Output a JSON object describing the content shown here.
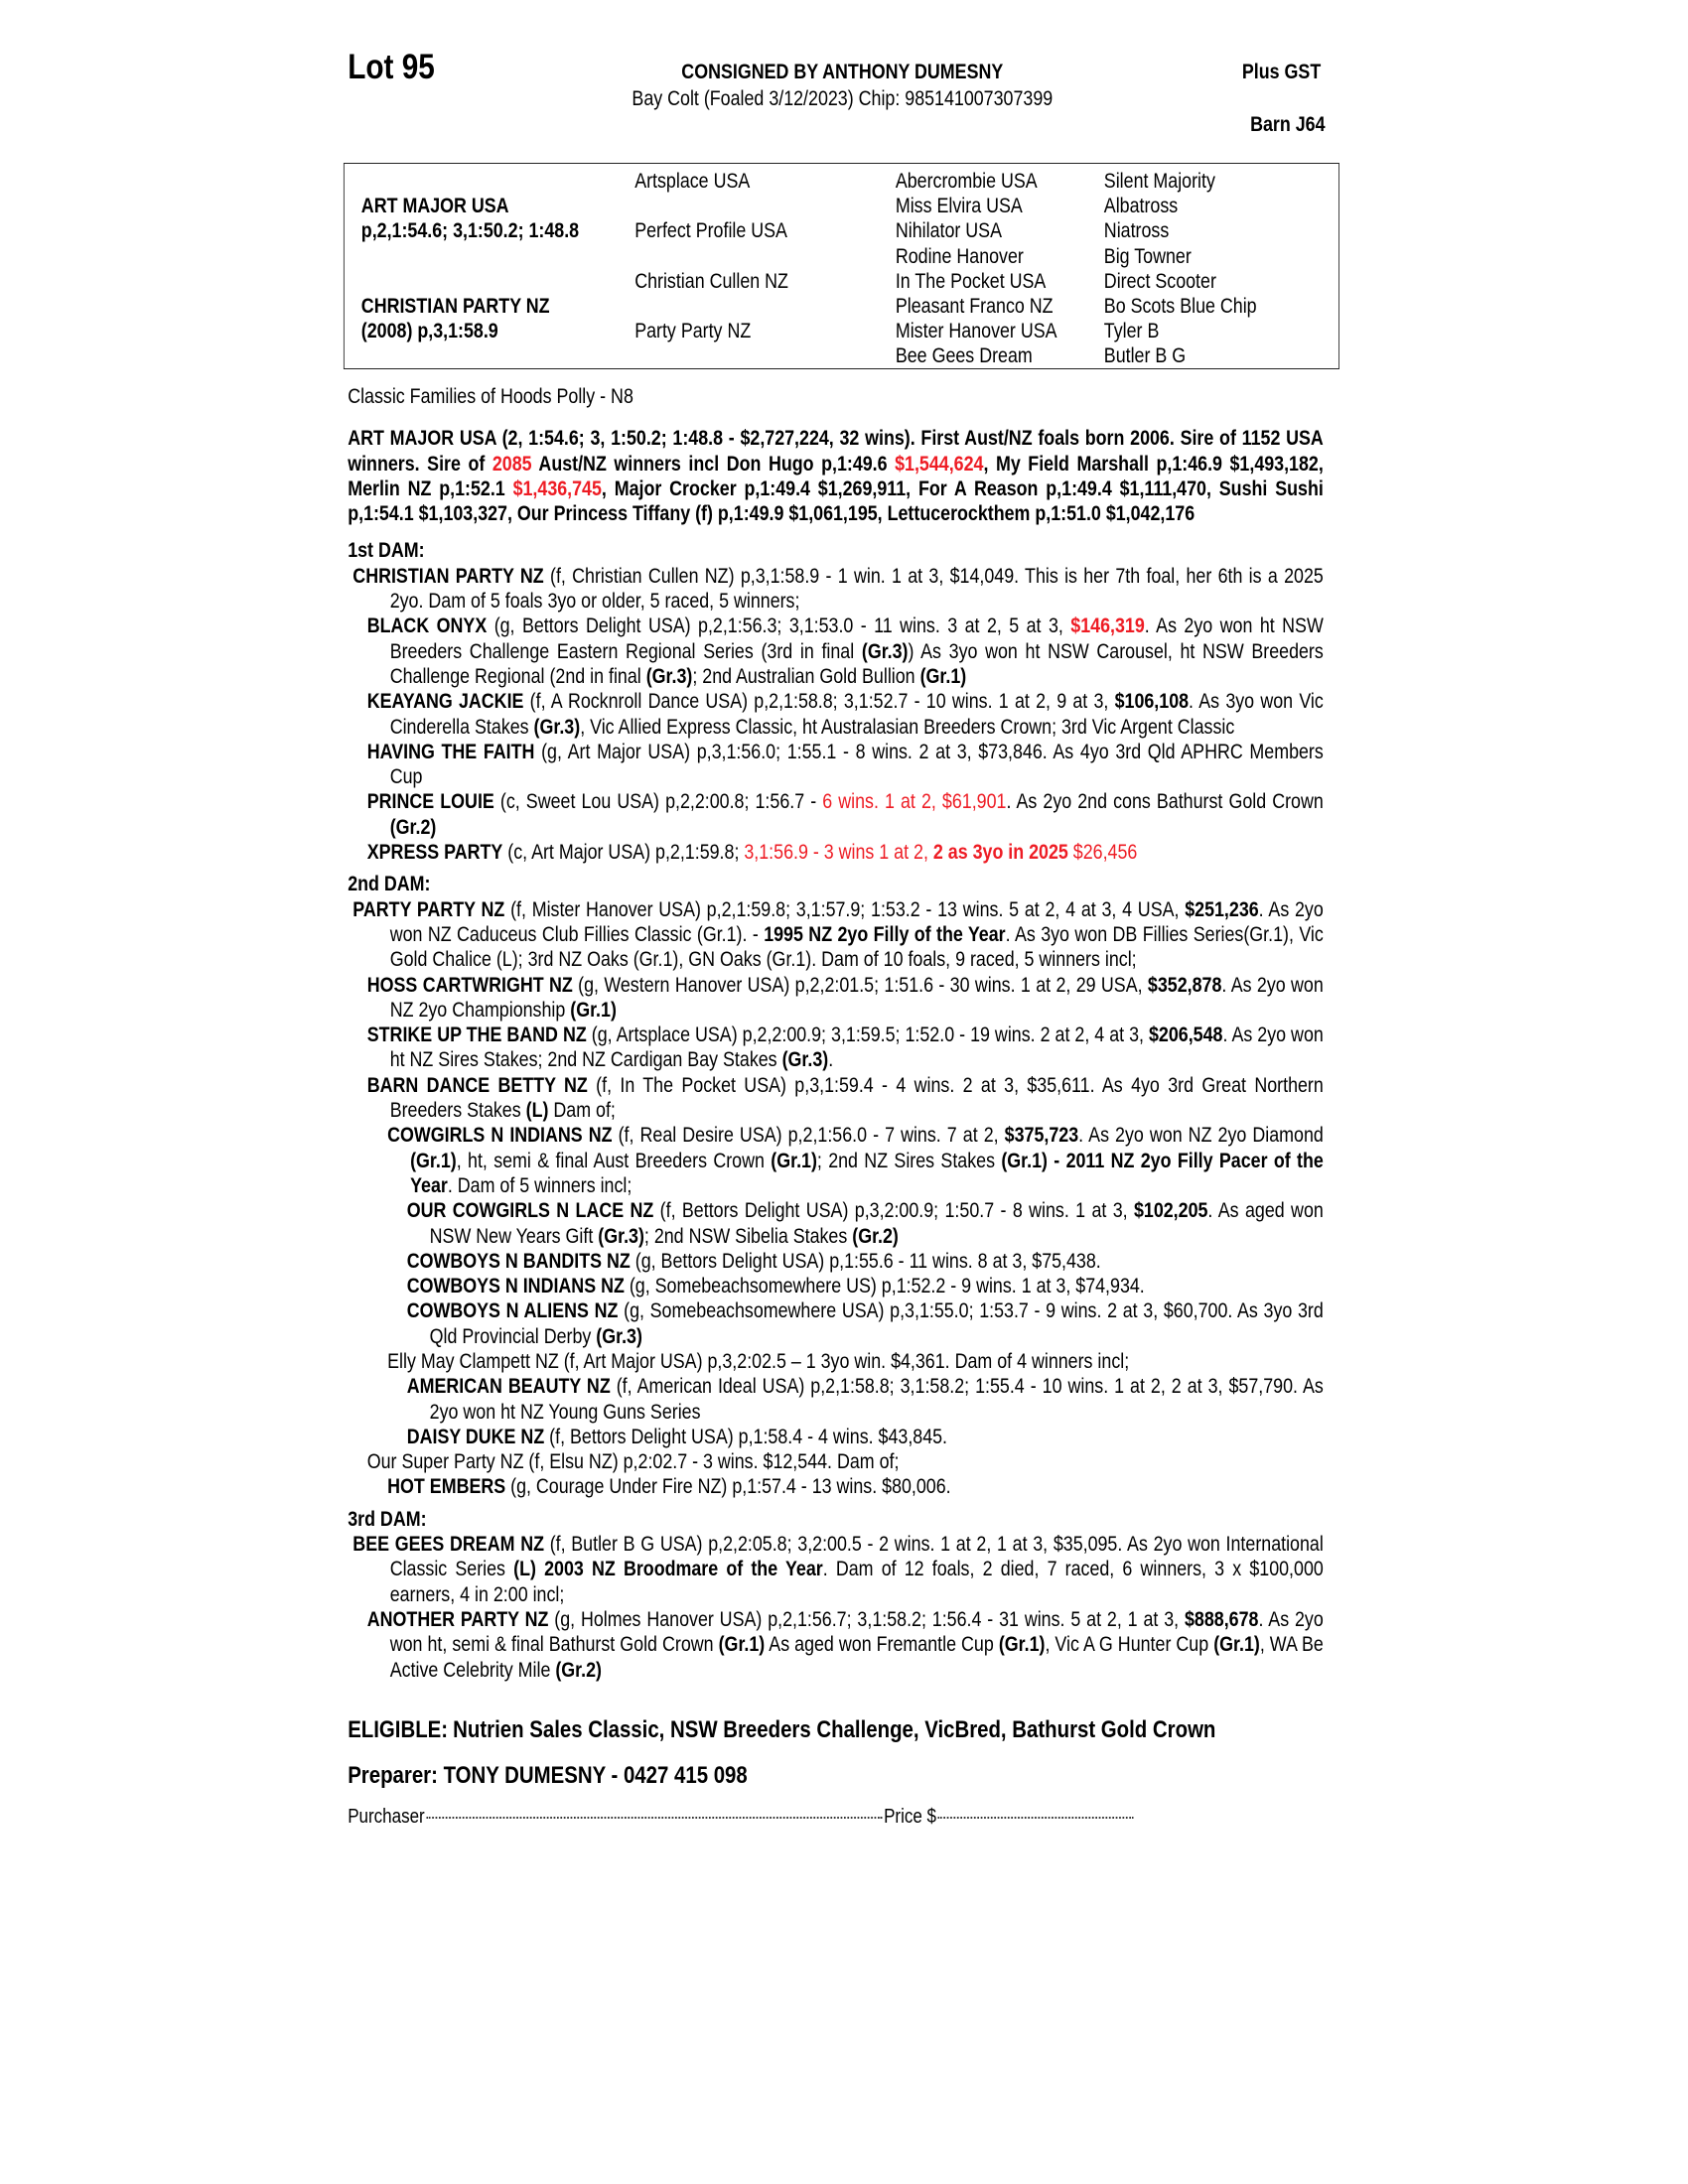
{
  "header": {
    "lot": "Lot 95",
    "consigned": "CONSIGNED BY ANTHONY DUMESNY",
    "plus_gst": "Plus GST",
    "description": "Bay Colt (Foaled 3/12/2023) Chip: 985141007307399",
    "barn": "Barn J64"
  },
  "pedigree": {
    "sire": {
      "name": "ART MAJOR USA",
      "record": "p,2,1:54.6; 3,1:50.2; 1:48.8"
    },
    "dam": {
      "name": "CHRISTIAN PARTY NZ",
      "record": "(2008) p,3,1:58.9"
    },
    "gen2": [
      "Artsplace USA",
      "Perfect Profile USA",
      "Christian Cullen NZ",
      "Party Party NZ"
    ],
    "gen3": [
      "Abercrombie USA",
      "Miss Elvira USA",
      "Nihilator USA",
      "Rodine Hanover",
      "In The Pocket USA",
      "Pleasant Franco NZ",
      "Mister Hanover USA",
      "Bee Gees Dream"
    ],
    "gen4": [
      "Silent Majority",
      "Albatross",
      "Niatross",
      "Big Towner",
      "Direct Scooter",
      "Bo Scots Blue Chip",
      "Tyler B",
      "Butler B G"
    ]
  },
  "family": "Classic Families of Hoods Polly - N8",
  "sire_para": [
    {
      "t": "ART MAJOR USA (2, 1:54.6; 3, 1:50.2; 1:48.8 - $2,727,224, 32 wins). First Aust/NZ foals born 2006. Sire of 1152 USA winners. Sire of ",
      "s": "b"
    },
    {
      "t": "2085",
      "s": "br"
    },
    {
      "t": " Aust/NZ winners incl Don Hugo p,1:49.6 ",
      "s": "b"
    },
    {
      "t": "$1,544,624",
      "s": "br"
    },
    {
      "t": ", My Field Marshall p,1:46.9 $1,493,182, Merlin NZ p,1:52.1 ",
      "s": "b"
    },
    {
      "t": "$1,436,745",
      "s": "br"
    },
    {
      "t": ", Major Crocker p,1:49.4 $1,269,911, For A Reason p,1:49.4 $1,111,470, Sushi Sushi p,1:54.1 $1,103,327, Our Princess Tiffany (f) p,1:49.9 $1,061,195, Lettucerockthem p,1:51.0 $1,042,176",
      "s": "b"
    }
  ],
  "sections": [
    {
      "heading": "1st DAM:",
      "entries": [
        {
          "level": 0,
          "runs": [
            {
              "t": "CHRISTIAN PARTY NZ",
              "s": "b"
            },
            {
              "t": " (f, Christian Cullen NZ) p,3,1:58.9 - 1 win. 1 at 3, $14,049. This is her 7th foal, her 6th is a 2025 2yo. Dam of 5 foals 3yo or older, 5 raced, 5 winners;",
              "s": ""
            }
          ]
        },
        {
          "level": 1,
          "runs": [
            {
              "t": "BLACK ONYX",
              "s": "b"
            },
            {
              "t": " (g, Bettors Delight USA) p,2,1:56.3; 3,1:53.0 - 11 wins. 3 at 2, 5 at 3, ",
              "s": ""
            },
            {
              "t": "$146,319",
              "s": "br"
            },
            {
              "t": ". As 2yo won ht NSW Breeders Challenge Eastern Regional Series (3rd in final ",
              "s": ""
            },
            {
              "t": "(Gr.3)",
              "s": "b"
            },
            {
              "t": ") As 3yo won ht NSW Carousel, ht NSW Breeders Challenge Regional (2nd in final ",
              "s": ""
            },
            {
              "t": "(Gr.3)",
              "s": "b"
            },
            {
              "t": "; 2nd Australian Gold Bullion ",
              "s": ""
            },
            {
              "t": "(Gr.1)",
              "s": "b"
            }
          ]
        },
        {
          "level": 1,
          "runs": [
            {
              "t": "KEAYANG JACKIE",
              "s": "b"
            },
            {
              "t": " (f, A Rocknroll Dance USA) p,2,1:58.8; 3,1:52.7 - 10 wins. 1 at 2, 9 at 3, ",
              "s": ""
            },
            {
              "t": "$106,108",
              "s": "b"
            },
            {
              "t": ". As 3yo won Vic Cinderella Stakes ",
              "s": ""
            },
            {
              "t": "(Gr.3)",
              "s": "b"
            },
            {
              "t": ", Vic Allied Express Classic, ht Australasian Breeders Crown; 3rd Vic Argent Classic",
              "s": ""
            }
          ]
        },
        {
          "level": 1,
          "runs": [
            {
              "t": "HAVING THE FAITH",
              "s": "b"
            },
            {
              "t": " (g, Art Major USA) p,3,1:56.0; 1:55.1 - 8 wins. 2 at 3, $73,846. As 4yo 3rd Qld APHRC Members Cup",
              "s": ""
            }
          ]
        },
        {
          "level": 1,
          "runs": [
            {
              "t": "PRINCE LOUIE",
              "s": "b"
            },
            {
              "t": " (c, Sweet Lou USA) p,2,2:00.8; 1:56.7 - ",
              "s": ""
            },
            {
              "t": "6 wins. 1 at 2, $61,901",
              "s": "r"
            },
            {
              "t": ". As 2yo 2nd cons Bathurst Gold Crown ",
              "s": ""
            },
            {
              "t": "(Gr.2)",
              "s": "b"
            }
          ]
        },
        {
          "level": 1,
          "runs": [
            {
              "t": "XPRESS PARTY",
              "s": "b"
            },
            {
              "t": " (c, Art Major USA) p,2,1:59.8; ",
              "s": ""
            },
            {
              "t": "3,1:56.9 - 3 wins 1 at 2, ",
              "s": "r"
            },
            {
              "t": "2 as 3yo in 2025",
              "s": "br"
            },
            {
              "t": " $26,456",
              "s": "r"
            }
          ]
        }
      ]
    },
    {
      "heading": "2nd DAM:",
      "entries": [
        {
          "level": 0,
          "runs": [
            {
              "t": "PARTY PARTY NZ",
              "s": "b"
            },
            {
              "t": " (f, Mister Hanover USA) p,2,1:59.8; 3,1:57.9; 1:53.2 - 13 wins. 5 at 2, 4 at 3, 4 USA, ",
              "s": ""
            },
            {
              "t": "$251,236",
              "s": "b"
            },
            {
              "t": ". As 2yo won NZ Caduceus Club Fillies Classic (Gr.1). - ",
              "s": ""
            },
            {
              "t": "1995 NZ 2yo Filly of the Year",
              "s": "b"
            },
            {
              "t": ". As 3yo won DB Fillies Series(Gr.1), Vic Gold Chalice (L); 3rd NZ Oaks (Gr.1), GN Oaks (Gr.1). Dam of 10 foals, 9 raced, 5 winners incl;",
              "s": ""
            }
          ]
        },
        {
          "level": 1,
          "runs": [
            {
              "t": "HOSS CARTWRIGHT NZ",
              "s": "b"
            },
            {
              "t": " (g, Western Hanover USA) p,2,2:01.5; 1:51.6 - 30 wins. 1 at 2, 29 USA, ",
              "s": ""
            },
            {
              "t": "$352,878",
              "s": "b"
            },
            {
              "t": ". As 2yo won NZ 2yo Championship ",
              "s": ""
            },
            {
              "t": "(Gr.1)",
              "s": "b"
            }
          ]
        },
        {
          "level": 1,
          "runs": [
            {
              "t": "STRIKE UP THE BAND NZ",
              "s": "b"
            },
            {
              "t": " (g, Artsplace USA) p,2,2:00.9; 3,1:59.5; 1:52.0 - 19 wins. 2 at 2, 4 at 3, ",
              "s": ""
            },
            {
              "t": "$206,548",
              "s": "b"
            },
            {
              "t": ". As 2yo won ht NZ Sires Stakes; 2nd NZ Cardigan Bay Stakes ",
              "s": ""
            },
            {
              "t": "(Gr.3)",
              "s": "b"
            },
            {
              "t": ".",
              "s": ""
            }
          ]
        },
        {
          "level": 1,
          "runs": [
            {
              "t": "BARN DANCE BETTY NZ",
              "s": "b"
            },
            {
              "t": " (f, In The Pocket USA) p,3,1:59.4 - 4 wins. 2 at 3, $35,611. As 4yo 3rd Great Northern Breeders Stakes ",
              "s": ""
            },
            {
              "t": "(L)",
              "s": "b"
            },
            {
              "t": " Dam of;",
              "s": ""
            }
          ]
        },
        {
          "level": 2,
          "runs": [
            {
              "t": "COWGIRLS N INDIANS NZ",
              "s": "b"
            },
            {
              "t": " (f, Real Desire USA) p,2,1:56.0 - 7 wins. 7 at 2, ",
              "s": ""
            },
            {
              "t": "$375,723",
              "s": "b"
            },
            {
              "t": ". As 2yo won NZ 2yo Diamond ",
              "s": ""
            },
            {
              "t": "(Gr.1)",
              "s": "b"
            },
            {
              "t": ", ht, semi & final Aust Breeders Crown ",
              "s": ""
            },
            {
              "t": "(Gr.1)",
              "s": "b"
            },
            {
              "t": "; 2nd NZ Sires Stakes ",
              "s": ""
            },
            {
              "t": "(Gr.1) - 2011 NZ 2yo Filly Pacer of the Year",
              "s": "b"
            },
            {
              "t": ". Dam of 5 winners incl;",
              "s": ""
            }
          ]
        },
        {
          "level": 3,
          "runs": [
            {
              "t": "OUR COWGIRLS N LACE NZ",
              "s": "b"
            },
            {
              "t": " (f, Bettors Delight USA) p,3,2:00.9; 1:50.7 - 8 wins. 1 at 3, ",
              "s": ""
            },
            {
              "t": "$102,205",
              "s": "b"
            },
            {
              "t": ". As aged won NSW New Years Gift ",
              "s": ""
            },
            {
              "t": "(Gr.3)",
              "s": "b"
            },
            {
              "t": "; 2nd NSW Sibelia Stakes ",
              "s": ""
            },
            {
              "t": "(Gr.2)",
              "s": "b"
            }
          ]
        },
        {
          "level": 3,
          "runs": [
            {
              "t": "COWBOYS N BANDITS NZ",
              "s": "b"
            },
            {
              "t": " (g, Bettors Delight USA) p,1:55.6 - 11 wins. 8 at 3, $75,438.",
              "s": ""
            }
          ]
        },
        {
          "level": 3,
          "runs": [
            {
              "t": "COWBOYS N INDIANS NZ",
              "s": "b"
            },
            {
              "t": " (g, Somebeachsomewhere US) p,1:52.2 - 9 wins. 1 at 3, $74,934.",
              "s": ""
            }
          ]
        },
        {
          "level": 3,
          "runs": [
            {
              "t": "COWBOYS N ALIENS NZ",
              "s": "b"
            },
            {
              "t": " (g, Somebeachsomewhere USA) p,3,1:55.0; 1:53.7 - 9 wins. 2 at 3, $60,700. As 3yo 3rd Qld Provincial Derby ",
              "s": ""
            },
            {
              "t": "(Gr.3)",
              "s": "b"
            }
          ]
        },
        {
          "level": 2,
          "runs": [
            {
              "t": "Elly May Clampett NZ (f, Art Major USA) p,3,2:02.5 – 1 3yo win. $4,361. Dam of 4 winners incl;",
              "s": ""
            }
          ]
        },
        {
          "level": 3,
          "runs": [
            {
              "t": "AMERICAN BEAUTY NZ",
              "s": "b"
            },
            {
              "t": " (f, American Ideal USA) p,2,1:58.8; 3,1:58.2; 1:55.4 - 10 wins. 1 at 2, 2 at 3, $57,790. As 2yo won ht NZ Young Guns Series",
              "s": ""
            }
          ]
        },
        {
          "level": 3,
          "runs": [
            {
              "t": "DAISY DUKE NZ",
              "s": "b"
            },
            {
              "t": " (f, Bettors Delight USA) p,1:58.4 - 4 wins. $43,845.",
              "s": ""
            }
          ]
        },
        {
          "level": 1,
          "runs": [
            {
              "t": "Our Super Party NZ (f, Elsu NZ) p,2:02.7 - 3 wins. $12,544. Dam of;",
              "s": ""
            }
          ]
        },
        {
          "level": 2,
          "runs": [
            {
              "t": "HOT EMBERS",
              "s": "b"
            },
            {
              "t": " (g, Courage Under Fire NZ) p,1:57.4 - 13 wins. $80,006.",
              "s": ""
            }
          ]
        }
      ]
    },
    {
      "heading": "3rd DAM:",
      "entries": [
        {
          "level": 0,
          "runs": [
            {
              "t": "BEE GEES DREAM NZ",
              "s": "b"
            },
            {
              "t": " (f, Butler B G USA) p,2,2:05.8; 3,2:00.5 - 2 wins. 1 at 2, 1 at 3, $35,095. As 2yo won International Classic Series ",
              "s": ""
            },
            {
              "t": "(L) 2003 NZ Broodmare of the Year",
              "s": "b"
            },
            {
              "t": ". Dam of 12 foals, 2 died, 7 raced, 6 winners, 3 x $100,000 earners, 4 in 2:00 incl;",
              "s": ""
            }
          ]
        },
        {
          "level": 1,
          "runs": [
            {
              "t": "ANOTHER PARTY NZ",
              "s": "b"
            },
            {
              "t": " (g, Holmes Hanover USA) p,2,1:56.7; 3,1:58.2; 1:56.4 - 31 wins. 5 at 2, 1 at 3, ",
              "s": ""
            },
            {
              "t": "$888,678",
              "s": "b"
            },
            {
              "t": ". As 2yo won ht, semi & final Bathurst Gold Crown ",
              "s": ""
            },
            {
              "t": "(Gr.1)",
              "s": "b"
            },
            {
              "t": " As aged won Fremantle Cup ",
              "s": ""
            },
            {
              "t": "(Gr.1)",
              "s": "b"
            },
            {
              "t": ", Vic A G Hunter Cup ",
              "s": ""
            },
            {
              "t": "(Gr.1)",
              "s": "b"
            },
            {
              "t": ", WA Be Active Celebrity Mile ",
              "s": ""
            },
            {
              "t": "(Gr.2)",
              "s": "b"
            }
          ]
        }
      ]
    }
  ],
  "eligible": {
    "label": "ELIGIBLE:",
    "value": "Nutrien Sales Classic, NSW Breeders Challenge, VicBred, Bathurst Gold Crown"
  },
  "preparer": "Preparer: TONY DUMESNY - 0427 415 098",
  "purchase": {
    "purchaser_label": "Purchaser",
    "price_label": "Price $"
  },
  "colors": {
    "text": "#000000",
    "highlight": "#ee1c24"
  }
}
